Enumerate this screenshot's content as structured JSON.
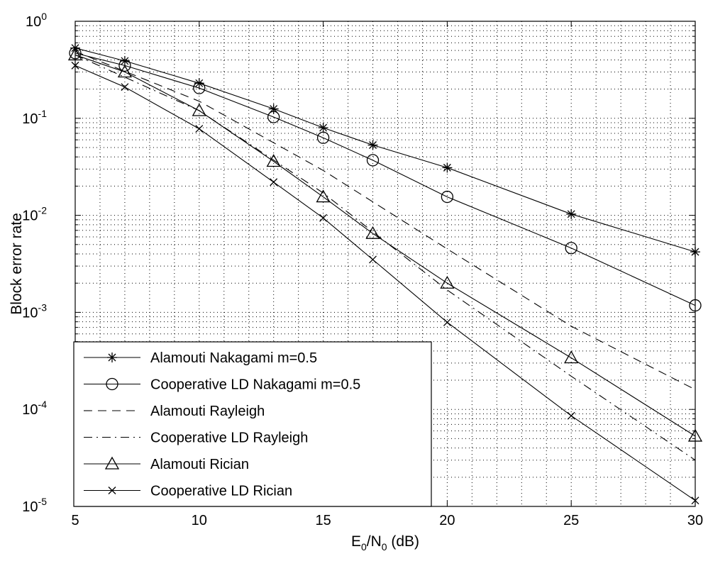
{
  "chart_data": {
    "type": "line",
    "title": "",
    "xlabel": "E0/N0 (dB)",
    "xlabel_parts": {
      "E": "E",
      "sub1": "0",
      "slash": "/N",
      "sub2": "0",
      "unit": " (dB)"
    },
    "ylabel": "Block error rate",
    "xlim": [
      5,
      30
    ],
    "ylim": [
      1e-05,
      1
    ],
    "yscale": "log",
    "grid": true,
    "legend_position": "bottom-left",
    "xticks": [
      5,
      10,
      15,
      20,
      25,
      30
    ],
    "xtick_labels": [
      "5",
      "10",
      "15",
      "20",
      "25",
      "30"
    ],
    "yticks": [
      1e-05,
      0.0001,
      0.001,
      0.01,
      0.1,
      1
    ],
    "ytick_labels": [
      {
        "base": "10",
        "exp": "-5"
      },
      {
        "base": "10",
        "exp": "-4"
      },
      {
        "base": "10",
        "exp": "-3"
      },
      {
        "base": "10",
        "exp": "-2"
      },
      {
        "base": "10",
        "exp": "-1"
      },
      {
        "base": "10",
        "exp": "0"
      }
    ],
    "series": [
      {
        "name": "Alamouti Nakagami m=0.5",
        "line": "solid",
        "marker": "asterisk",
        "x": [
          5,
          7,
          10,
          13,
          15,
          17,
          20,
          25,
          30
        ],
        "y": [
          0.53,
          0.39,
          0.23,
          0.125,
          0.08,
          0.053,
          0.031,
          0.0103,
          0.0042
        ]
      },
      {
        "name": "Cooperative LD Nakagami m=0.5",
        "line": "solid",
        "marker": "circle",
        "x": [
          5,
          7,
          10,
          13,
          15,
          17,
          20,
          25,
          30
        ],
        "y": [
          0.47,
          0.35,
          0.205,
          0.103,
          0.063,
          0.037,
          0.0155,
          0.0046,
          0.00118
        ]
      },
      {
        "name": "Alamouti Rayleigh",
        "line": "dashed",
        "marker": "none",
        "x": [
          5,
          10,
          15,
          20,
          25,
          30
        ],
        "y": [
          0.49,
          0.15,
          0.029,
          0.0045,
          0.00072,
          0.00016
        ]
      },
      {
        "name": "Cooperative LD Rayleigh",
        "line": "dashdot",
        "marker": "none",
        "x": [
          5,
          10,
          15,
          20,
          25,
          30
        ],
        "y": [
          0.45,
          0.12,
          0.017,
          0.0017,
          0.00022,
          3e-05
        ]
      },
      {
        "name": "Alamouti Rician",
        "line": "solid",
        "marker": "triangle",
        "x": [
          5,
          7,
          10,
          13,
          15,
          17,
          20,
          25,
          30
        ],
        "y": [
          0.45,
          0.3,
          0.12,
          0.036,
          0.0155,
          0.0065,
          0.002,
          0.00034,
          5.3e-05
        ]
      },
      {
        "name": "Cooperative LD Rician",
        "line": "solid",
        "marker": "x",
        "x": [
          5,
          7,
          10,
          13,
          15,
          17,
          20,
          25,
          30
        ],
        "y": [
          0.35,
          0.21,
          0.078,
          0.022,
          0.0094,
          0.0035,
          0.00079,
          8.6e-05,
          1.15e-05
        ]
      }
    ]
  }
}
